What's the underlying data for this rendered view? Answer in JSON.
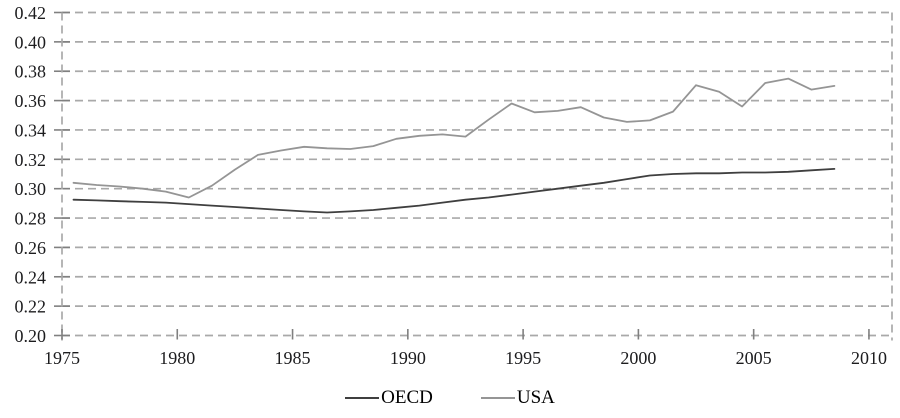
{
  "figure": {
    "background": "#ffffff",
    "text_color": "#1c1c1e"
  },
  "chart_data": {
    "type": "line",
    "title": "",
    "xlabel": "",
    "ylabel": "",
    "x": [
      1975,
      1976,
      1977,
      1978,
      1979,
      1980,
      1981,
      1982,
      1983,
      1984,
      1985,
      1986,
      1987,
      1988,
      1989,
      1990,
      1991,
      1992,
      1993,
      1994,
      1995,
      1996,
      1997,
      1998,
      1999,
      2000,
      2001,
      2002,
      2003,
      2004,
      2005,
      2006,
      2007,
      2008
    ],
    "series": [
      {
        "name": "OECD",
        "color": "#3f3f3f",
        "values": [
          0.2925,
          0.292,
          0.2915,
          0.291,
          0.2905,
          0.2895,
          0.2885,
          0.2875,
          0.2865,
          0.2855,
          0.2845,
          0.2838,
          0.2845,
          0.2855,
          0.287,
          0.2885,
          0.2905,
          0.2925,
          0.294,
          0.296,
          0.298,
          0.3,
          0.302,
          0.304,
          0.3065,
          0.309,
          0.31,
          0.3105,
          0.3105,
          0.311,
          0.311,
          0.3115,
          0.3125,
          0.3135
        ]
      },
      {
        "name": "USA",
        "color": "#959595",
        "values": [
          0.304,
          0.3025,
          0.3015,
          0.3,
          0.298,
          0.294,
          0.302,
          0.313,
          0.323,
          0.326,
          0.3285,
          0.3275,
          0.327,
          0.329,
          0.334,
          0.336,
          0.337,
          0.3355,
          0.347,
          0.358,
          0.352,
          0.353,
          0.3555,
          0.3485,
          0.3455,
          0.3465,
          0.3525,
          0.3705,
          0.366,
          0.356,
          0.372,
          0.375,
          0.3675,
          0.37
        ]
      }
    ],
    "ylim": [
      0.2,
      0.42
    ],
    "y_tick_step": 0.02,
    "y_tick_labels": [
      "0.20",
      "0.22",
      "0.24",
      "0.26",
      "0.28",
      "0.30",
      "0.32",
      "0.34",
      "0.36",
      "0.38",
      "0.40",
      "0.42"
    ],
    "x_axis_range": [
      1975,
      2010
    ],
    "x_ticks": [
      1975,
      1980,
      1985,
      1990,
      1995,
      2000,
      2005,
      2010
    ],
    "x_tick_labels": [
      "1975",
      "1980",
      "1985",
      "1990",
      "1995",
      "2000",
      "2005",
      "2010"
    ],
    "grid": {
      "style": "dashed",
      "color": "#a9a9a9",
      "axis_tick_color": "#808080"
    },
    "legend_position": "bottom-center"
  }
}
